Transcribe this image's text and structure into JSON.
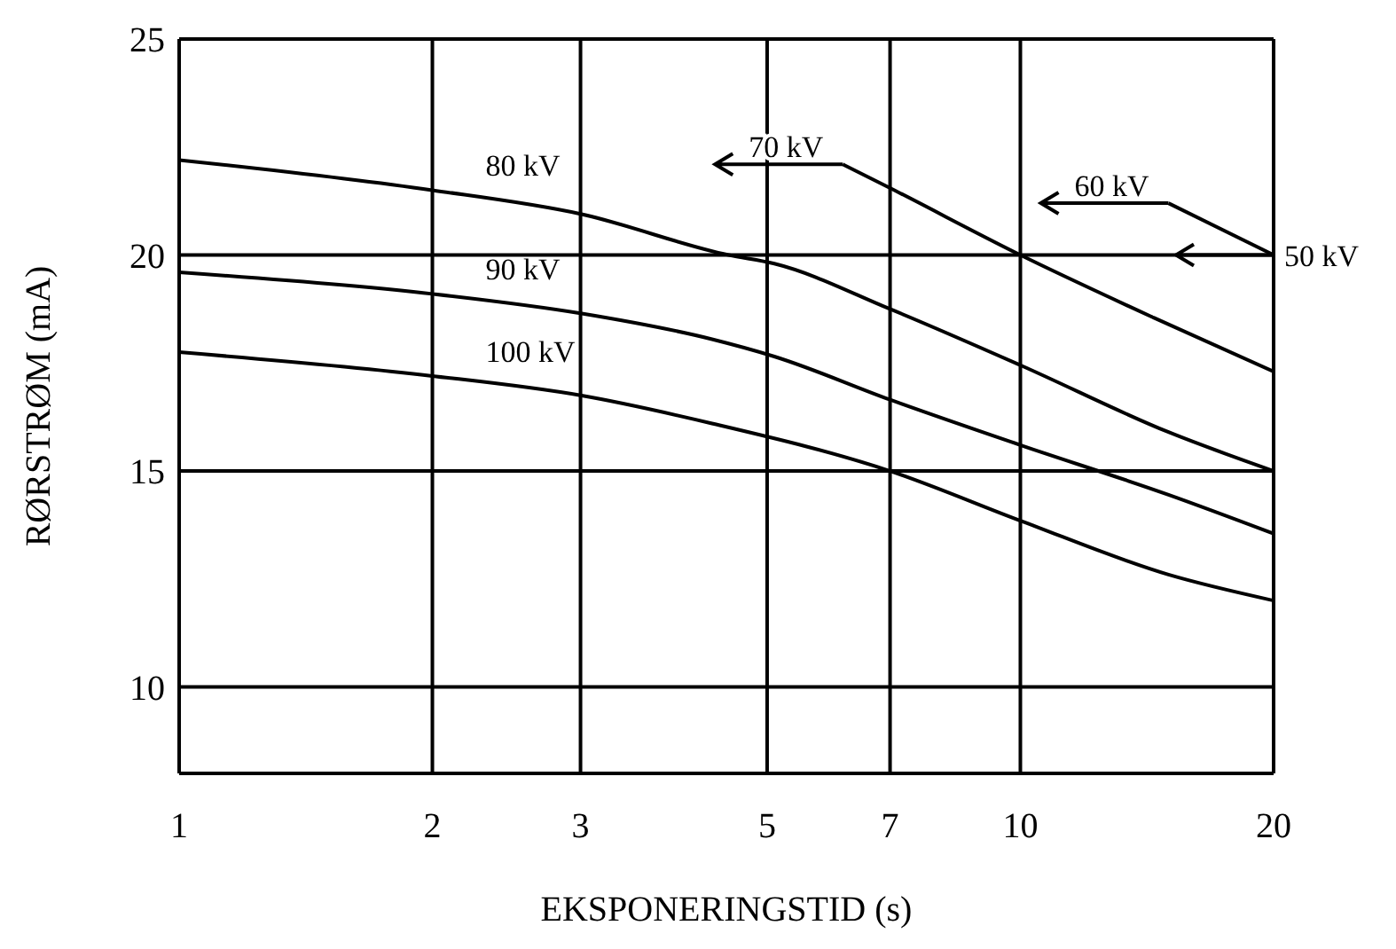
{
  "chart_data": {
    "type": "line",
    "xlabel": "EKSPONERINGSTID (s)",
    "ylabel": "RØRSTRØM (mA)",
    "log": "x",
    "grid": true,
    "legend": "top right",
    "marker": "none",
    "line_style": "solid",
    "xlim": [
      1,
      20
    ],
    "xticks": [
      1,
      2,
      3,
      5,
      7,
      10,
      20
    ],
    "ylim": [
      8,
      25
    ],
    "yticks": [
      10,
      15,
      20,
      25
    ],
    "series": [
      {
        "name": "80 kV",
        "color": "#000000",
        "x": [
          1,
          2,
          3,
          4.5,
          5.1,
          7,
          10,
          15,
          20
        ],
        "values": [
          22.2,
          21.5,
          20.95,
          20.0,
          19.8,
          18.75,
          17.45,
          15.9,
          15.0
        ]
      },
      {
        "name": "90 kV",
        "color": "#000000",
        "x": [
          1,
          2,
          3,
          4.3,
          5.1,
          7,
          10,
          15,
          20
        ],
        "values": [
          19.6,
          19.1,
          18.65,
          18.05,
          17.65,
          16.65,
          15.6,
          14.45,
          13.55
        ]
      },
      {
        "name": "100 kV",
        "color": "#000000",
        "x": [
          1,
          2,
          3,
          4.3,
          7,
          10,
          15,
          20
        ],
        "values": [
          17.75,
          17.2,
          16.75,
          16.1,
          15.0,
          13.85,
          12.6,
          12.0
        ]
      },
      {
        "name": "70 kV",
        "color": "#000000",
        "x": [
          6.15,
          7,
          10,
          14.4,
          20
        ],
        "values": [
          22.1,
          21.55,
          20.0,
          18.55,
          17.3
        ]
      },
      {
        "name": "60 kV",
        "color": "#000000",
        "x": [
          15,
          20
        ],
        "values": [
          21.2,
          20.0
        ]
      }
    ],
    "annotations": [
      {
        "text": "50 kV",
        "x": 20,
        "y": 20
      }
    ]
  }
}
